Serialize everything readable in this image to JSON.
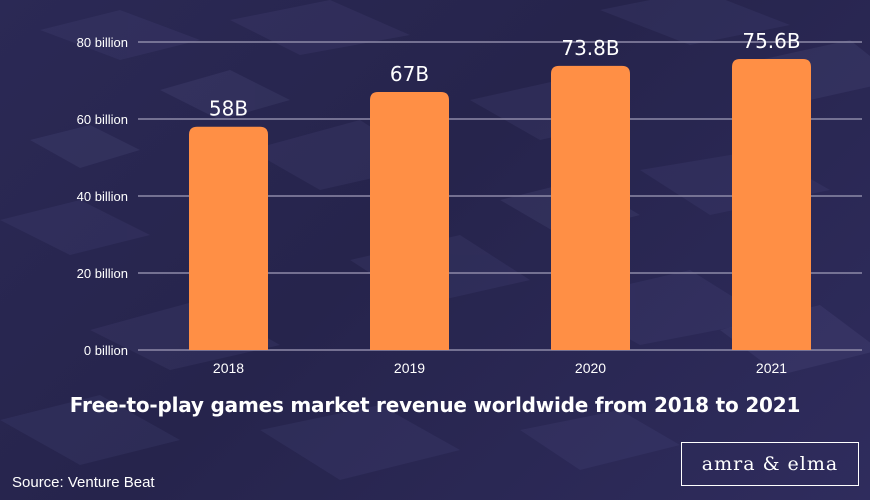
{
  "chart_data": {
    "type": "bar",
    "title": "Free-to-play games market revenue worldwide from 2018 to 2021",
    "categories": [
      "2018",
      "2019",
      "2020",
      "2021"
    ],
    "values": [
      58,
      67,
      73.8,
      75.6
    ],
    "data_labels": [
      "58B",
      "67B",
      "73.8B",
      "75.6B"
    ],
    "ylim": [
      0,
      80
    ],
    "yticks": [
      0,
      20,
      40,
      60,
      80
    ],
    "ytick_labels": [
      "0 billion",
      "20 billion",
      "40 billion",
      "60 billion",
      "80 billion"
    ],
    "xlabel": "",
    "ylabel": "",
    "grid": true,
    "bar_color": "#ff8f45",
    "grid_color": "#8d8aa8"
  },
  "footer": {
    "source": "Source: Venture Beat",
    "brand": "amra & elma"
  }
}
